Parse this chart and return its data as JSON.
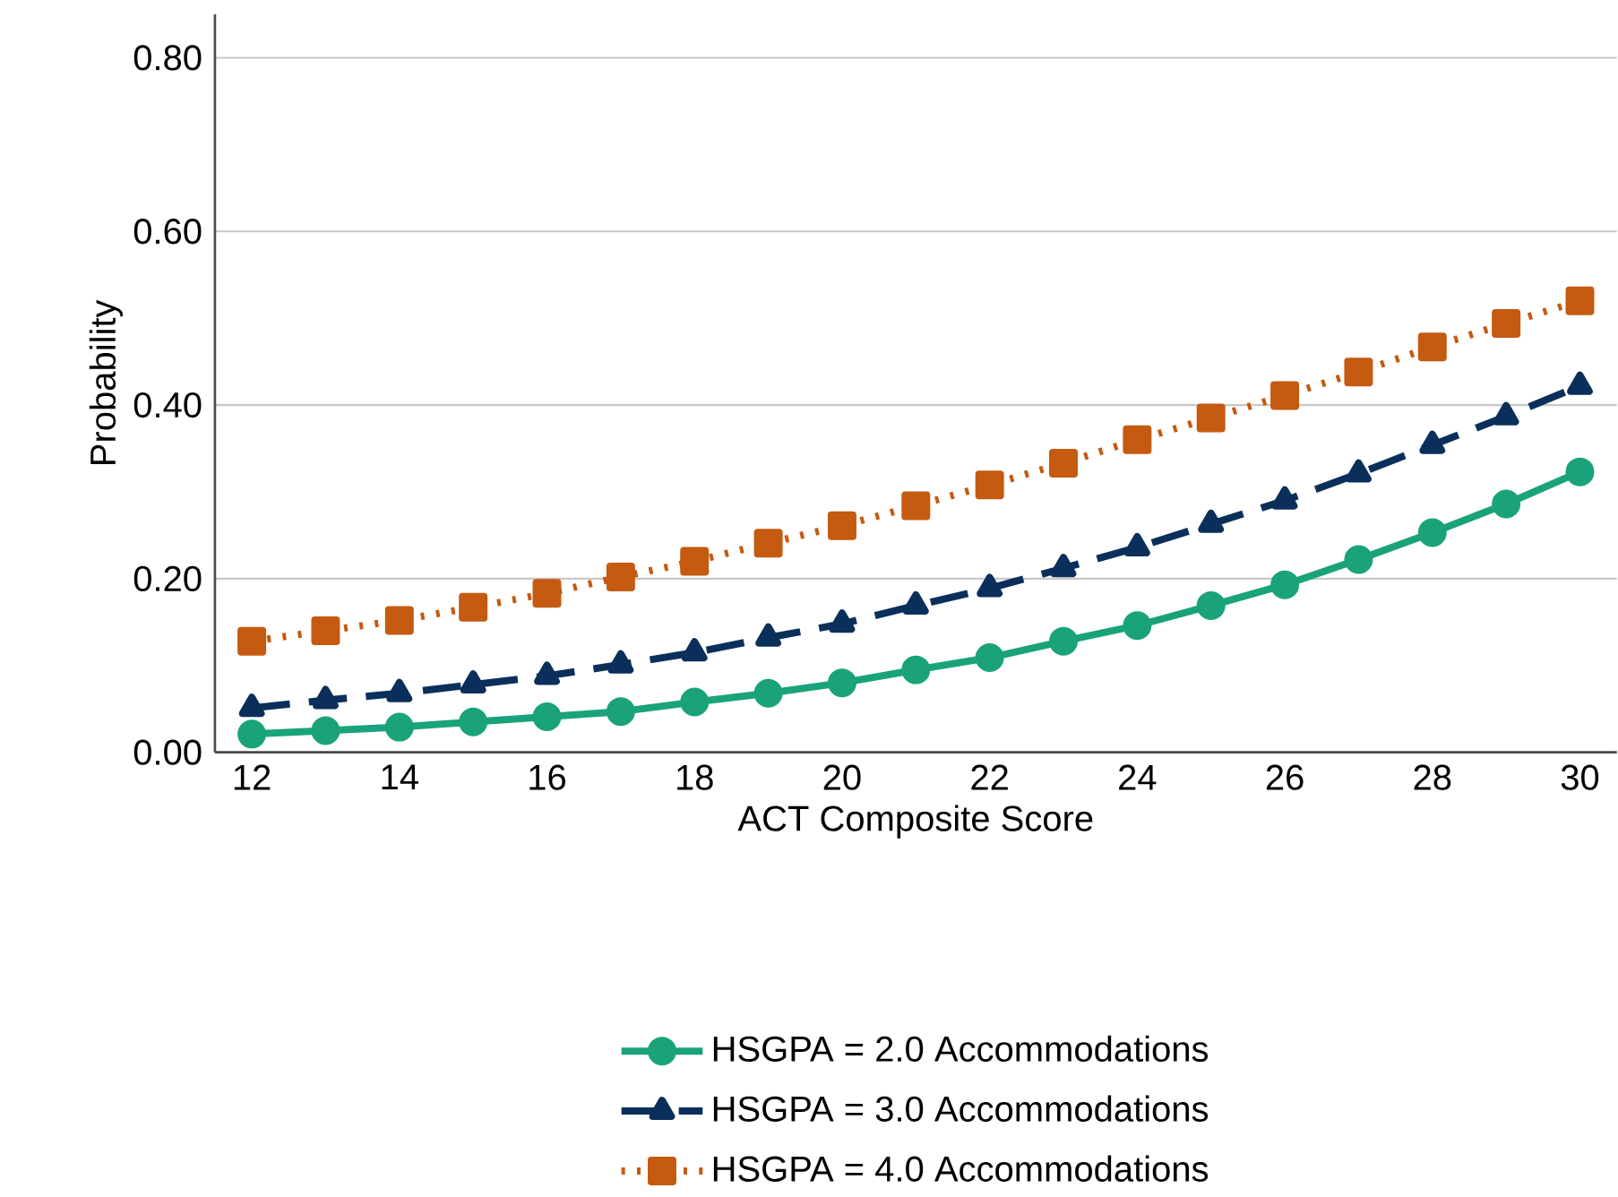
{
  "chart_data": {
    "type": "line",
    "xlabel": "ACT Composite Score",
    "ylabel": "Probability",
    "x": [
      12,
      13,
      14,
      15,
      16,
      17,
      18,
      19,
      20,
      21,
      22,
      23,
      24,
      25,
      26,
      27,
      28,
      29,
      30
    ],
    "series": [
      {
        "name": "HSGPA = 2.0   Accommodations",
        "color": "#1aa37a",
        "marker": "circle",
        "line_style": "solid",
        "values": [
          0.021,
          0.025,
          0.029,
          0.035,
          0.041,
          0.047,
          0.058,
          0.068,
          0.08,
          0.095,
          0.109,
          0.128,
          0.146,
          0.169,
          0.193,
          0.222,
          0.253,
          0.286,
          0.323
        ]
      },
      {
        "name": "HSGPA = 3.0   Accommodations",
        "color": "#0b2f5b",
        "marker": "triangle",
        "line_style": "dashed",
        "values": [
          0.051,
          0.06,
          0.068,
          0.078,
          0.088,
          0.101,
          0.115,
          0.132,
          0.148,
          0.169,
          0.189,
          0.212,
          0.236,
          0.263,
          0.29,
          0.321,
          0.354,
          0.387,
          0.422
        ]
      },
      {
        "name": "HSGPA = 4.0   Accommodations",
        "color": "#c55a11",
        "marker": "square",
        "line_style": "dotted",
        "values": [
          0.128,
          0.14,
          0.152,
          0.167,
          0.183,
          0.202,
          0.22,
          0.241,
          0.261,
          0.284,
          0.308,
          0.333,
          0.36,
          0.385,
          0.411,
          0.438,
          0.467,
          0.494,
          0.52
        ]
      }
    ],
    "xlim": [
      11.5,
      30.5
    ],
    "xticks": [
      12,
      14,
      16,
      18,
      20,
      22,
      24,
      26,
      28,
      30
    ],
    "ylim": [
      0,
      0.85
    ],
    "yticks": [
      {
        "value": 0,
        "label": "0.00"
      },
      {
        "value": 0.2,
        "label": "0.20"
      },
      {
        "value": 0.4,
        "label": "0.40"
      },
      {
        "value": 0.6,
        "label": "0.60"
      },
      {
        "value": 0.8,
        "label": "0.80"
      }
    ],
    "grid": "y",
    "legend": "bottom"
  }
}
